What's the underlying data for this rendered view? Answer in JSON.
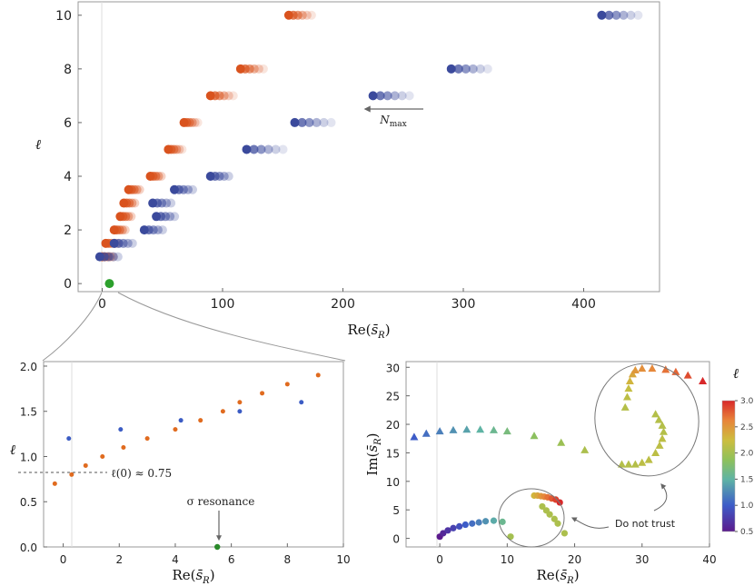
{
  "chart_data": [
    {
      "name": "main",
      "type": "scatter",
      "xlabel": "Re(s̄R)",
      "ylabel": "ℓ",
      "xlim": [
        -20,
        463
      ],
      "ylim": [
        -0.3,
        10.5
      ],
      "xticks": [
        "0",
        "100",
        "200",
        "300",
        "400"
      ],
      "yticks": [
        "0",
        "2",
        "4",
        "6",
        "8",
        "10"
      ],
      "annotation": "Nmax",
      "series": [
        {
          "name": "orange",
          "color": "#d9531e",
          "points": [
            [
              0,
              1
            ],
            [
              3,
              1.5
            ],
            [
              10,
              2
            ],
            [
              15,
              2.5
            ],
            [
              18,
              3
            ],
            [
              22,
              3.5
            ],
            [
              40,
              4
            ],
            [
              55,
              5
            ],
            [
              68,
              6
            ],
            [
              90,
              7
            ],
            [
              115,
              8
            ],
            [
              155,
              10
            ]
          ]
        },
        {
          "name": "blue",
          "color": "#3b4a9c",
          "points": [
            [
              -2,
              1
            ],
            [
              10,
              1.5
            ],
            [
              35,
              2
            ],
            [
              45,
              2.5
            ],
            [
              42,
              3
            ],
            [
              60,
              3.5
            ],
            [
              90,
              4
            ],
            [
              120,
              5
            ],
            [
              160,
              6
            ],
            [
              225,
              7
            ],
            [
              290,
              8
            ],
            [
              415,
              10
            ]
          ]
        },
        {
          "name": "resonance",
          "color": "#2ca02c",
          "points": [
            [
              6,
              0
            ]
          ]
        }
      ]
    },
    {
      "name": "zoom",
      "type": "scatter",
      "xlabel": "Re(s̄R)",
      "ylabel": "ℓ",
      "xlim": [
        -0.7,
        10
      ],
      "ylim": [
        0,
        2.05
      ],
      "xticks": [
        "0",
        "2",
        "4",
        "6",
        "8",
        "10"
      ],
      "yticks": [
        "0.0",
        "0.5",
        "1.0",
        "1.5",
        "2.0"
      ],
      "annotation_intercept": "ℓ(0) ≈ 0.75",
      "annotation_resonance": "σ resonance",
      "series": [
        {
          "name": "orange",
          "color": "#e06b1f",
          "points": [
            [
              -0.3,
              0.7
            ],
            [
              0.3,
              0.8
            ],
            [
              0.8,
              0.9
            ],
            [
              1.4,
              1.0
            ],
            [
              2.15,
              1.1
            ],
            [
              3.0,
              1.2
            ],
            [
              4.0,
              1.3
            ],
            [
              4.9,
              1.4
            ],
            [
              5.7,
              1.5
            ],
            [
              6.3,
              1.6
            ],
            [
              7.1,
              1.7
            ],
            [
              8.0,
              1.8
            ],
            [
              9.1,
              1.9
            ]
          ]
        },
        {
          "name": "blue",
          "color": "#3b5cc4",
          "points": [
            [
              0.2,
              1.2
            ],
            [
              2.05,
              1.3
            ],
            [
              4.2,
              1.4
            ],
            [
              6.3,
              1.5
            ],
            [
              8.5,
              1.6
            ]
          ]
        },
        {
          "name": "resonance",
          "color": "#2a8a2a",
          "points": [
            [
              5.5,
              0.0
            ]
          ]
        }
      ]
    },
    {
      "name": "trajectories",
      "type": "scatter",
      "xlabel": "Re(s̄R)",
      "ylabel": "Im(s̄R)",
      "xlim": [
        -5,
        40
      ],
      "ylim": [
        -1.5,
        31
      ],
      "xticks": [
        "0",
        "10",
        "20",
        "30",
        "40"
      ],
      "yticks": [
        "0",
        "5",
        "10",
        "15",
        "20",
        "25",
        "30"
      ],
      "annotation": "Do not trust",
      "colorbar": {
        "label": "ℓ",
        "min": 0.5,
        "max": 3.0,
        "ticks": [
          "0.5",
          "1.0",
          "1.5",
          "2.0",
          "2.5",
          "3.0"
        ]
      },
      "series": [
        {
          "name": "circles",
          "marker": "circle",
          "points": [
            [
              0,
              0.3,
              0.5
            ],
            [
              0.5,
              0.9,
              0.6
            ],
            [
              1.2,
              1.4,
              0.7
            ],
            [
              2,
              1.8,
              0.8
            ],
            [
              2.9,
              2.1,
              0.9
            ],
            [
              3.8,
              2.4,
              1.0
            ],
            [
              4.8,
              2.6,
              1.1
            ],
            [
              5.8,
              2.8,
              1.2
            ],
            [
              6.8,
              3.0,
              1.3
            ],
            [
              8,
              3.1,
              1.45
            ],
            [
              9.3,
              2.9,
              1.6
            ],
            [
              10.5,
              0.3,
              2.0
            ],
            [
              14,
              7.5,
              2.3
            ],
            [
              14.5,
              7.5,
              2.4
            ],
            [
              15,
              7.4,
              2.5
            ],
            [
              15.5,
              7.3,
              2.6
            ],
            [
              16,
              7.2,
              2.7
            ],
            [
              16.6,
              7.0,
              2.8
            ],
            [
              17.2,
              6.8,
              2.9
            ],
            [
              17.8,
              6.3,
              3.0
            ],
            [
              15.2,
              5.6,
              2.05
            ],
            [
              15.8,
              4.9,
              2.05
            ],
            [
              16.3,
              4.2,
              2.05
            ],
            [
              17,
              3.4,
              2.05
            ],
            [
              17.5,
              2.6,
              2.05
            ],
            [
              18.5,
              0.9,
              2.05
            ]
          ]
        },
        {
          "name": "triangles",
          "marker": "triangle",
          "points": [
            [
              -3.8,
              17.8,
              1.0
            ],
            [
              -2,
              18.4,
              1.1
            ],
            [
              0,
              18.8,
              1.2
            ],
            [
              2,
              19,
              1.3
            ],
            [
              4,
              19.1,
              1.4
            ],
            [
              6,
              19.1,
              1.5
            ],
            [
              8,
              19,
              1.6
            ],
            [
              10,
              18.8,
              1.7
            ],
            [
              14,
              18,
              1.85
            ],
            [
              18,
              16.8,
              1.95
            ],
            [
              21.5,
              15.5,
              2.05
            ],
            [
              27,
              13,
              2.1
            ],
            [
              28,
              13,
              2.1
            ],
            [
              29,
              13,
              2.1
            ],
            [
              30,
              13.3,
              2.15
            ],
            [
              31,
              13.8,
              2.15
            ],
            [
              32,
              15,
              2.15
            ],
            [
              32.6,
              16.3,
              2.15
            ],
            [
              33,
              17.5,
              2.15
            ],
            [
              33.2,
              18.7,
              2.1
            ],
            [
              33,
              19.8,
              2.1
            ],
            [
              32.5,
              20.8,
              2.1
            ],
            [
              32,
              21.8,
              2.1
            ],
            [
              27.5,
              23,
              2.1
            ],
            [
              27.8,
              24.8,
              2.15
            ],
            [
              28,
              26.3,
              2.2
            ],
            [
              28.2,
              27.6,
              2.3
            ],
            [
              28.6,
              28.8,
              2.4
            ],
            [
              29,
              29.5,
              2.5
            ],
            [
              30,
              29.8,
              2.55
            ],
            [
              31.5,
              29.8,
              2.6
            ],
            [
              33.5,
              29.6,
              2.7
            ],
            [
              35,
              29.2,
              2.75
            ],
            [
              36.8,
              28.6,
              2.85
            ],
            [
              39,
              27.6,
              3.0
            ]
          ]
        }
      ]
    }
  ]
}
